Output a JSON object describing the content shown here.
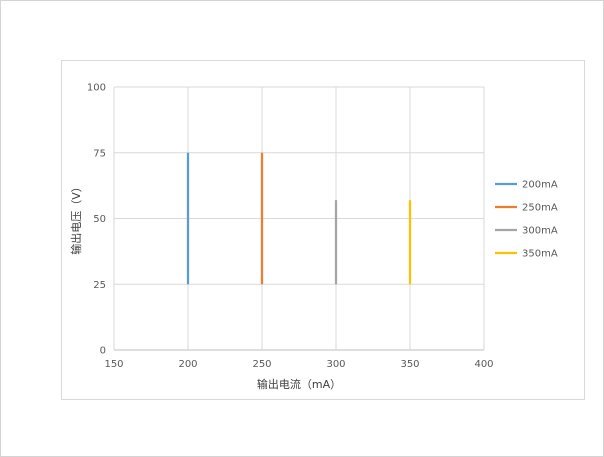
{
  "chart_data": {
    "type": "line",
    "title": "",
    "xlabel": "输出电流（mA）",
    "ylabel": "输出电压（V）",
    "xlim": [
      150,
      400
    ],
    "ylim": [
      0,
      100
    ],
    "xticks": [
      150,
      200,
      250,
      300,
      350,
      400
    ],
    "yticks": [
      0,
      25,
      50,
      75,
      100
    ],
    "grid": true,
    "legend_position": "right",
    "series": [
      {
        "name": "200mA",
        "color": "#5B9BD5",
        "x": [
          200,
          200
        ],
        "y": [
          25,
          75
        ]
      },
      {
        "name": "250mA",
        "color": "#ED7D31",
        "x": [
          250,
          250
        ],
        "y": [
          25,
          75
        ]
      },
      {
        "name": "300mA",
        "color": "#A5A5A5",
        "x": [
          300,
          300
        ],
        "y": [
          25,
          57
        ]
      },
      {
        "name": "350mA",
        "color": "#FFC000",
        "x": [
          350,
          350
        ],
        "y": [
          25,
          57
        ]
      }
    ]
  }
}
